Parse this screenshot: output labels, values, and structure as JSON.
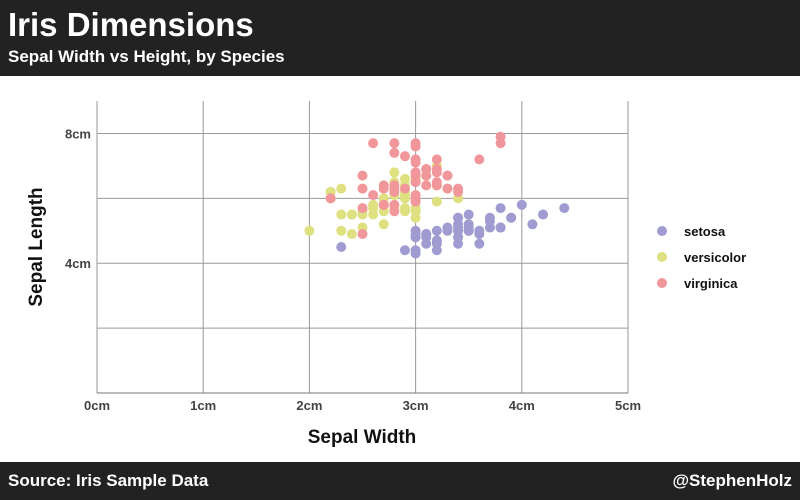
{
  "header": {
    "title": "Iris Dimensions",
    "subtitle": "Sepal Width vs Height, by Species"
  },
  "footer": {
    "source": "Source: Iris Sample Data",
    "credit": "@StephenHolz"
  },
  "chart_data": {
    "type": "scatter",
    "title": "Iris Dimensions",
    "subtitle": "Sepal Width vs Height, by Species",
    "xlabel": "Sepal Width",
    "ylabel": "Sepal Length",
    "xlim": [
      0,
      5
    ],
    "ylim": [
      0,
      9
    ],
    "x_ticks": [
      0,
      1,
      2,
      3,
      4,
      5
    ],
    "x_tick_labels": [
      "0cm",
      "1cm",
      "2cm",
      "3cm",
      "4cm",
      "5cm"
    ],
    "y_ticks": [
      4,
      8
    ],
    "y_tick_labels": [
      "4cm",
      "8cm"
    ],
    "y_gridlines": [
      2,
      4,
      6,
      8
    ],
    "grid": true,
    "legend_position": "right",
    "series": [
      {
        "name": "setosa",
        "color": "#a09bd0",
        "points": [
          [
            3.5,
            5.1
          ],
          [
            3.0,
            4.9
          ],
          [
            3.2,
            4.7
          ],
          [
            3.1,
            4.6
          ],
          [
            3.6,
            5.0
          ],
          [
            3.9,
            5.4
          ],
          [
            3.4,
            4.6
          ],
          [
            3.4,
            5.0
          ],
          [
            2.9,
            4.4
          ],
          [
            3.1,
            4.9
          ],
          [
            3.7,
            5.4
          ],
          [
            3.4,
            4.8
          ],
          [
            3.0,
            4.8
          ],
          [
            3.0,
            4.3
          ],
          [
            4.0,
            5.8
          ],
          [
            4.4,
            5.7
          ],
          [
            3.9,
            5.4
          ],
          [
            3.5,
            5.1
          ],
          [
            3.8,
            5.7
          ],
          [
            3.8,
            5.1
          ],
          [
            3.4,
            5.4
          ],
          [
            3.7,
            5.1
          ],
          [
            3.6,
            4.6
          ],
          [
            3.3,
            5.1
          ],
          [
            3.4,
            4.8
          ],
          [
            3.0,
            5.0
          ],
          [
            3.4,
            5.0
          ],
          [
            3.5,
            5.2
          ],
          [
            3.4,
            5.2
          ],
          [
            3.2,
            4.7
          ],
          [
            3.1,
            4.8
          ],
          [
            3.4,
            5.4
          ],
          [
            4.1,
            5.2
          ],
          [
            4.2,
            5.5
          ],
          [
            3.1,
            4.9
          ],
          [
            3.2,
            5.0
          ],
          [
            3.5,
            5.5
          ],
          [
            3.6,
            4.9
          ],
          [
            3.0,
            4.4
          ],
          [
            3.4,
            5.1
          ],
          [
            3.5,
            5.0
          ],
          [
            2.3,
            4.5
          ],
          [
            3.2,
            4.4
          ],
          [
            3.5,
            5.0
          ],
          [
            3.8,
            5.1
          ],
          [
            3.0,
            4.8
          ],
          [
            3.8,
            5.1
          ],
          [
            3.2,
            4.6
          ],
          [
            3.7,
            5.3
          ],
          [
            3.3,
            5.0
          ]
        ]
      },
      {
        "name": "versicolor",
        "color": "#dfe07f",
        "points": [
          [
            3.2,
            7.0
          ],
          [
            3.2,
            6.4
          ],
          [
            3.1,
            6.9
          ],
          [
            2.3,
            5.5
          ],
          [
            2.8,
            6.5
          ],
          [
            2.8,
            5.7
          ],
          [
            3.3,
            6.3
          ],
          [
            2.4,
            4.9
          ],
          [
            2.9,
            6.6
          ],
          [
            2.7,
            5.2
          ],
          [
            2.0,
            5.0
          ],
          [
            3.0,
            5.9
          ],
          [
            2.2,
            6.0
          ],
          [
            2.9,
            6.1
          ],
          [
            2.9,
            5.6
          ],
          [
            3.1,
            6.7
          ],
          [
            3.0,
            5.6
          ],
          [
            2.7,
            5.8
          ],
          [
            2.2,
            6.2
          ],
          [
            2.5,
            5.6
          ],
          [
            3.2,
            5.9
          ],
          [
            2.8,
            6.1
          ],
          [
            2.5,
            6.3
          ],
          [
            2.8,
            6.1
          ],
          [
            2.9,
            6.4
          ],
          [
            3.0,
            6.6
          ],
          [
            2.8,
            6.8
          ],
          [
            3.0,
            6.7
          ],
          [
            2.9,
            6.0
          ],
          [
            2.6,
            5.7
          ],
          [
            2.4,
            5.5
          ],
          [
            2.4,
            5.5
          ],
          [
            2.7,
            5.8
          ],
          [
            2.7,
            6.0
          ],
          [
            3.0,
            5.4
          ],
          [
            3.4,
            6.0
          ],
          [
            3.1,
            6.7
          ],
          [
            2.3,
            6.3
          ],
          [
            3.0,
            5.6
          ],
          [
            2.5,
            5.5
          ],
          [
            2.6,
            5.5
          ],
          [
            3.0,
            6.1
          ],
          [
            2.6,
            5.8
          ],
          [
            2.3,
            5.0
          ],
          [
            2.7,
            5.6
          ],
          [
            3.0,
            5.7
          ],
          [
            2.9,
            5.7
          ],
          [
            2.9,
            6.2
          ],
          [
            2.5,
            5.1
          ],
          [
            2.8,
            5.7
          ]
        ]
      },
      {
        "name": "virginica",
        "color": "#f1979b",
        "points": [
          [
            3.3,
            6.3
          ],
          [
            2.7,
            5.8
          ],
          [
            3.0,
            7.1
          ],
          [
            2.9,
            6.3
          ],
          [
            3.0,
            6.5
          ],
          [
            3.0,
            7.6
          ],
          [
            2.5,
            4.9
          ],
          [
            2.9,
            7.3
          ],
          [
            2.5,
            6.7
          ],
          [
            3.6,
            7.2
          ],
          [
            3.2,
            6.5
          ],
          [
            2.7,
            6.4
          ],
          [
            3.0,
            6.8
          ],
          [
            2.5,
            5.7
          ],
          [
            2.8,
            5.8
          ],
          [
            3.2,
            6.4
          ],
          [
            3.0,
            6.5
          ],
          [
            3.8,
            7.7
          ],
          [
            2.6,
            7.7
          ],
          [
            2.2,
            6.0
          ],
          [
            3.2,
            6.9
          ],
          [
            2.8,
            5.6
          ],
          [
            2.8,
            7.7
          ],
          [
            2.7,
            6.3
          ],
          [
            3.3,
            6.7
          ],
          [
            3.2,
            7.2
          ],
          [
            2.8,
            6.2
          ],
          [
            3.0,
            6.1
          ],
          [
            2.8,
            6.4
          ],
          [
            3.0,
            7.2
          ],
          [
            2.8,
            7.4
          ],
          [
            3.8,
            7.9
          ],
          [
            2.8,
            6.4
          ],
          [
            2.8,
            6.3
          ],
          [
            2.6,
            6.1
          ],
          [
            3.0,
            7.7
          ],
          [
            3.4,
            6.3
          ],
          [
            3.1,
            6.4
          ],
          [
            3.0,
            6.0
          ],
          [
            3.1,
            6.9
          ],
          [
            3.1,
            6.7
          ],
          [
            3.1,
            6.9
          ],
          [
            2.7,
            5.8
          ],
          [
            3.2,
            6.8
          ],
          [
            3.3,
            6.7
          ],
          [
            3.0,
            6.7
          ],
          [
            2.5,
            6.3
          ],
          [
            3.0,
            6.5
          ],
          [
            3.4,
            6.2
          ],
          [
            3.0,
            5.9
          ]
        ]
      }
    ]
  }
}
